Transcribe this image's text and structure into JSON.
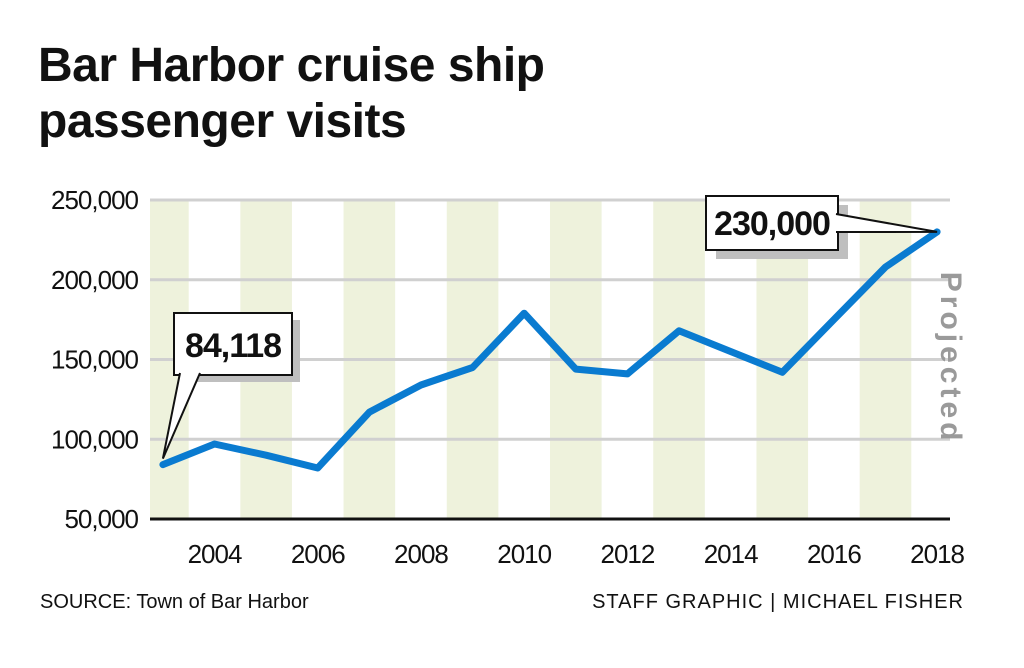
{
  "title": "Bar Harbor cruise ship passenger visits",
  "source": "SOURCE: Town of Bar Harbor",
  "credit": "STAFF GRAPHIC | MICHAEL FISHER",
  "colors": {
    "line": "#0a7bd0",
    "stripe": "#eef2dc",
    "grid": "#d0d0d0",
    "axis": "#111111",
    "projected_text": "#9a9a9a",
    "shadow": "#bfbfbf"
  },
  "chart_data": {
    "type": "line",
    "title": "Bar Harbor cruise ship passenger visits",
    "xlabel": "",
    "ylabel": "",
    "xlim": [
      2002.75,
      2018.25
    ],
    "ylim": [
      50000,
      250000
    ],
    "grid": true,
    "y_ticks": [
      50000,
      100000,
      150000,
      200000,
      250000
    ],
    "y_tick_labels": [
      "50,000",
      "100,000",
      "150,000",
      "200,000",
      "250,000"
    ],
    "x_ticks": [
      2004,
      2006,
      2008,
      2010,
      2012,
      2014,
      2016,
      2018
    ],
    "x_tick_labels": [
      "2004",
      "2006",
      "2008",
      "2010",
      "2012",
      "2014",
      "2016",
      "2018"
    ],
    "series": [
      {
        "x": [
          2003,
          2004,
          2005,
          2006,
          2007,
          2008,
          2009,
          2010,
          2011,
          2012,
          2013,
          2014,
          2015,
          2016,
          2017,
          2018
        ],
        "y": [
          84118,
          97000,
          90000,
          82000,
          117000,
          134000,
          145000,
          179000,
          144000,
          141000,
          168000,
          155000,
          142000,
          175000,
          208000,
          230000
        ]
      }
    ],
    "annotations": [
      {
        "text": "84,118",
        "x": 2003,
        "y": 84118
      },
      {
        "text": "230,000",
        "x": 2018,
        "y": 230000
      },
      {
        "text": "Projected",
        "x": 2018
      }
    ]
  }
}
